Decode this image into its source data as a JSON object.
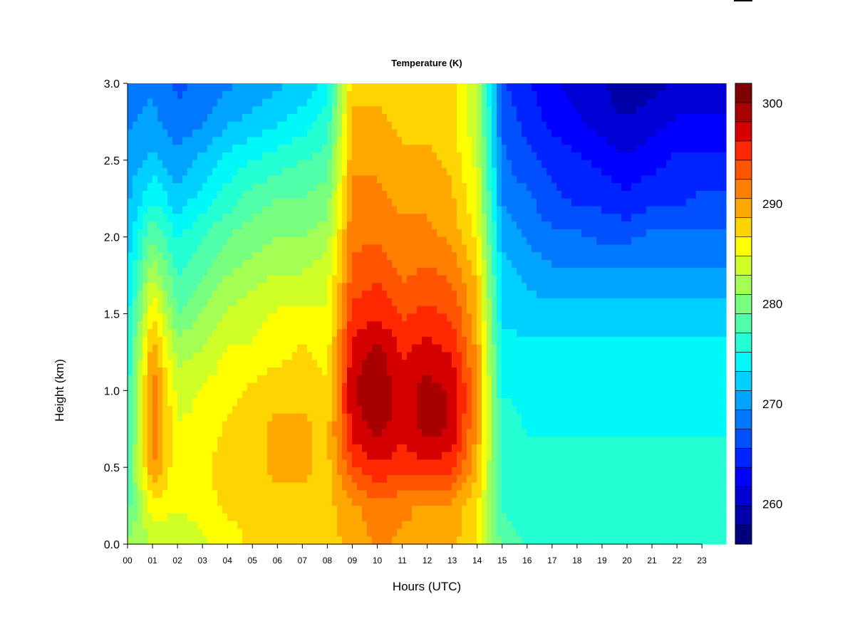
{
  "chart_data": {
    "type": "heatmap",
    "title": "Temperature (K)",
    "xlabel": "Hours (UTC)",
    "ylabel": "Height (km)",
    "xlim": [
      0,
      24
    ],
    "ylim": [
      0.0,
      3.0
    ],
    "x_ticks": [
      "00",
      "01",
      "02",
      "03",
      "04",
      "05",
      "06",
      "07",
      "08",
      "09",
      "10",
      "11",
      "12",
      "13",
      "14",
      "15",
      "16",
      "17",
      "18",
      "19",
      "20",
      "21",
      "22",
      "23"
    ],
    "y_ticks": [
      "0.0",
      "0.5",
      "1.0",
      "1.5",
      "2.0",
      "2.5",
      "3.0"
    ],
    "colorbar": {
      "vmin": 256,
      "vmax": 302,
      "ticks": [
        "260",
        "270",
        "280",
        "290",
        "300"
      ],
      "levels": [
        "#00007f",
        "#0000a8",
        "#0000d4",
        "#0000ff",
        "#0024ff",
        "#0050ff",
        "#0078ff",
        "#00a4ff",
        "#00d0ff",
        "#00f8f8",
        "#24ffd4",
        "#50ffa8",
        "#78ff7f",
        "#a4ff54",
        "#d0ff28",
        "#ffff00",
        "#ffd400",
        "#ffa800",
        "#ff7f00",
        "#ff5400",
        "#ff2800",
        "#d40000",
        "#a80000",
        "#7f0000"
      ]
    },
    "x_hours": [
      0,
      1,
      2,
      3,
      4,
      5,
      6,
      7,
      8,
      9,
      10,
      11,
      12,
      13,
      14,
      15,
      16,
      17,
      18,
      19,
      20,
      21,
      22,
      23
    ],
    "heights_km": [
      0.0,
      0.25,
      0.5,
      0.75,
      1.0,
      1.25,
      1.5,
      1.75,
      2.0,
      2.25,
      2.5,
      2.75,
      3.0
    ],
    "temperature_K": [
      [
        281,
        278,
        277,
        276,
        276,
        275,
        274,
        273,
        272,
        271,
        270,
        269,
        269
      ],
      [
        283,
        286,
        291,
        292,
        292,
        290,
        287,
        283,
        279,
        275,
        272,
        270,
        269
      ],
      [
        283,
        285,
        285,
        285,
        284,
        282,
        279,
        277,
        275,
        272,
        270,
        268,
        267
      ],
      [
        284,
        286,
        286,
        285,
        285,
        283,
        281,
        279,
        277,
        274,
        272,
        269,
        268
      ],
      [
        286,
        287,
        288,
        287,
        286,
        285,
        283,
        281,
        279,
        276,
        274,
        271,
        269
      ],
      [
        287,
        287,
        288,
        288,
        287,
        285,
        284,
        282,
        280,
        278,
        275,
        272,
        270
      ],
      [
        288,
        288,
        289,
        289,
        288,
        286,
        285,
        283,
        281,
        279,
        276,
        273,
        271
      ],
      [
        288,
        288,
        289,
        289,
        288,
        287,
        285,
        283,
        281,
        279,
        277,
        274,
        272
      ],
      [
        288,
        288,
        288,
        288,
        287,
        286,
        285,
        284,
        282,
        280,
        278,
        276,
        274
      ],
      [
        289,
        290,
        294,
        297,
        298,
        297,
        295,
        293,
        292,
        291,
        290,
        289,
        288
      ],
      [
        291,
        292,
        296,
        299,
        300,
        299,
        296,
        294,
        292,
        291,
        290,
        289,
        288
      ],
      [
        290,
        291,
        295,
        297,
        297,
        296,
        294,
        292,
        291,
        290,
        289,
        288,
        288
      ],
      [
        290,
        290,
        296,
        299,
        299,
        297,
        295,
        293,
        291,
        290,
        289,
        288,
        288
      ],
      [
        289,
        290,
        295,
        298,
        298,
        296,
        294,
        292,
        290,
        289,
        288,
        287,
        287
      ],
      [
        287,
        287,
        289,
        290,
        291,
        290,
        289,
        288,
        286,
        285,
        284,
        283,
        283
      ],
      [
        278,
        277,
        276,
        276,
        275,
        274,
        273,
        272,
        271,
        269,
        268,
        267,
        266
      ],
      [
        277,
        276,
        276,
        275,
        275,
        274,
        272,
        271,
        269,
        268,
        266,
        265,
        264
      ],
      [
        277,
        276,
        276,
        275,
        275,
        274,
        272,
        270,
        268,
        266,
        265,
        263,
        262
      ],
      [
        277,
        276,
        276,
        275,
        275,
        274,
        272,
        270,
        268,
        265,
        264,
        262,
        261
      ],
      [
        277,
        276,
        276,
        275,
        275,
        274,
        272,
        270,
        267,
        265,
        263,
        261,
        260
      ],
      [
        277,
        276,
        276,
        275,
        275,
        274,
        272,
        270,
        267,
        264,
        262,
        260,
        258
      ],
      [
        277,
        276,
        276,
        275,
        275,
        274,
        272,
        270,
        268,
        265,
        263,
        261,
        259
      ],
      [
        277,
        276,
        276,
        275,
        275,
        274,
        272,
        270,
        268,
        265,
        264,
        262,
        260
      ],
      [
        277,
        276,
        276,
        275,
        275,
        274,
        272,
        270,
        268,
        266,
        264,
        262,
        261
      ]
    ]
  }
}
